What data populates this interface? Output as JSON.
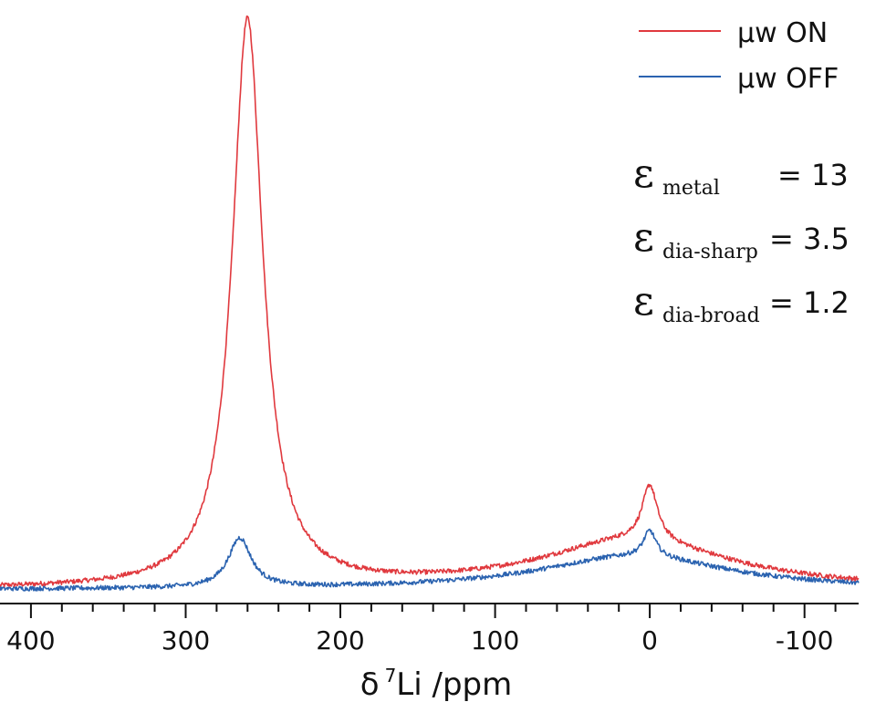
{
  "chart_data": {
    "type": "line",
    "title": "",
    "xlabel": "δ 7Li /ppm",
    "xlabel_parts": {
      "delta": "δ",
      "isotope_mass": "7",
      "rest": "Li /ppm"
    },
    "ylabel": "",
    "xlim": [
      420,
      -135
    ],
    "x_reversed": true,
    "ylim": [
      0,
      1.0
    ],
    "x_ticks": [
      400,
      300,
      200,
      100,
      0,
      -100
    ],
    "x_tick_labels": [
      "400",
      "300",
      "200",
      "100",
      "0",
      "-100"
    ],
    "legend_position": "top-right",
    "grid": false,
    "series": [
      {
        "name": "μw ON",
        "color": "#e0393e",
        "peaks": [
          {
            "center": 260,
            "height": 0.975,
            "width": 12,
            "shape": "lorentzian"
          },
          {
            "center": 0,
            "height": 0.095,
            "width": 6,
            "shape": "lorentzian"
          },
          {
            "center": 10,
            "height": 0.085,
            "width": 75,
            "shape": "lorentzian"
          }
        ],
        "baseline": 0.0,
        "noise": 0.004
      },
      {
        "name": "μw OFF",
        "color": "#2b63b0",
        "peaks": [
          {
            "center": 265,
            "height": 0.085,
            "width": 9,
            "shape": "lorentzian"
          },
          {
            "center": 0,
            "height": 0.045,
            "width": 5,
            "shape": "lorentzian"
          },
          {
            "center": 10,
            "height": 0.058,
            "width": 75,
            "shape": "lorentzian"
          }
        ],
        "baseline": 0.0,
        "noise": 0.004
      }
    ],
    "annotations": [
      {
        "symbol": "ε",
        "subscript": "metal",
        "value": "= 13"
      },
      {
        "symbol": "ε",
        "subscript": "dia-sharp",
        "value": "= 3.5"
      },
      {
        "symbol": "ε",
        "subscript": "dia-broad",
        "value": "= 1.2"
      }
    ]
  }
}
